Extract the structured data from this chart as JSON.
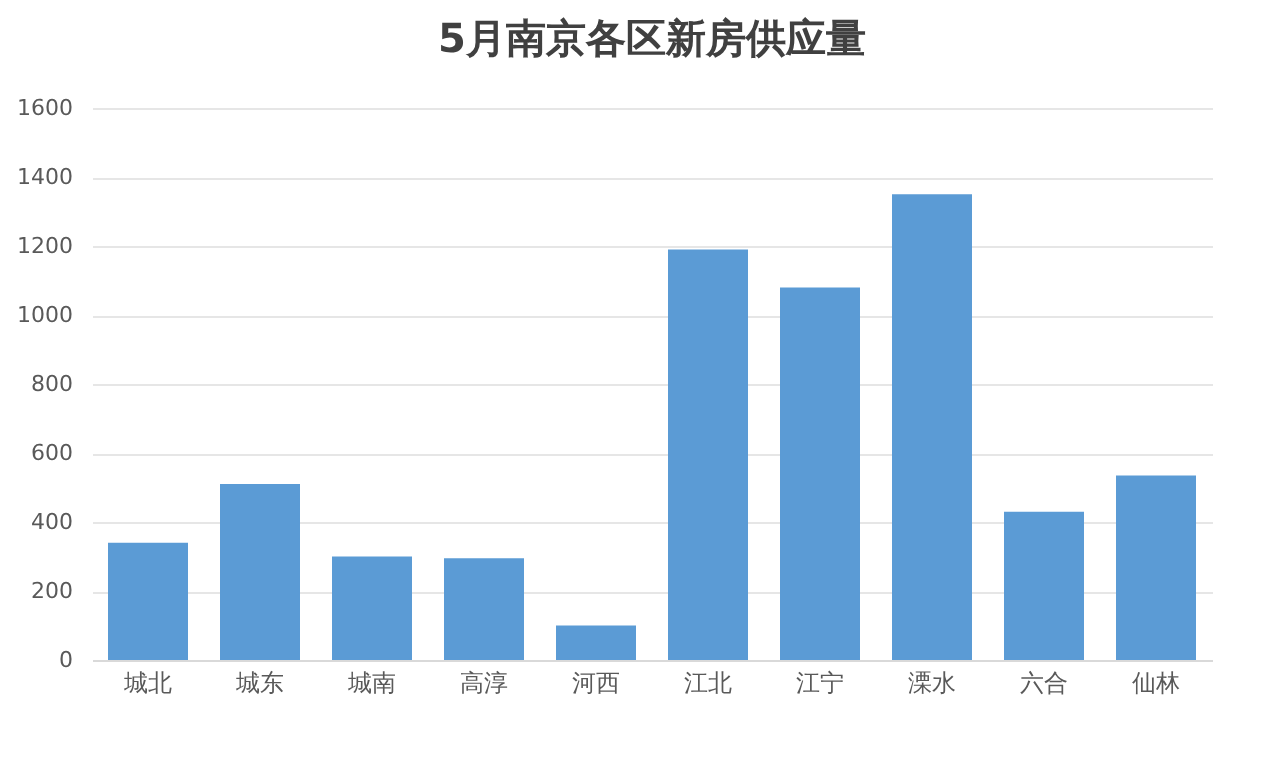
{
  "chart_data": {
    "type": "bar",
    "title": "5月南京各区新房供应量",
    "categories": [
      "城北",
      "城东",
      "城南",
      "高淳",
      "河西",
      "江北",
      "江宁",
      "溧水",
      "六合",
      "仙林"
    ],
    "values": [
      340,
      510,
      300,
      295,
      100,
      1190,
      1080,
      1350,
      430,
      535
    ],
    "color": "#5b9bd5",
    "ylim": [
      0,
      1600
    ],
    "yticks": [
      0,
      200,
      400,
      600,
      800,
      1000,
      1200,
      1400,
      1600
    ],
    "grid": "y"
  }
}
